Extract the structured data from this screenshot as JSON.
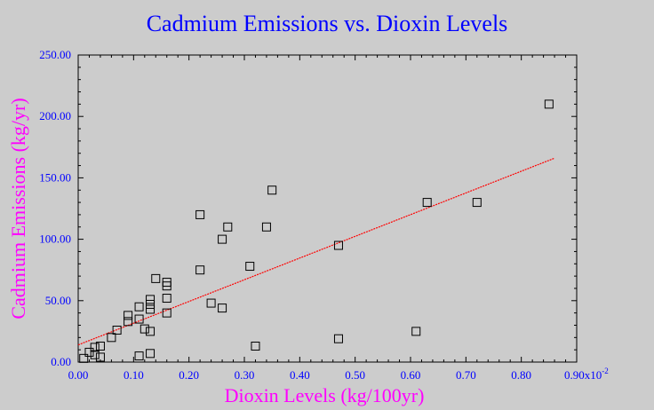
{
  "chart_data": {
    "type": "scatter",
    "title": "Cadmium Emissions vs. Dioxin Levels",
    "xlabel": "Dioxin Levels (kg/100yr)",
    "ylabel": "Cadmium Emissions (kg/yr)",
    "xlim": [
      0,
      0.9
    ],
    "ylim": [
      0,
      250
    ],
    "x_tick_labels": [
      "0.00",
      "0.10",
      "0.20",
      "0.30",
      "0.40",
      "0.50",
      "0.60",
      "0.70",
      "0.80",
      "0.90x10"
    ],
    "x_tick_exponent": "-2",
    "y_tick_labels": [
      "0.00",
      "50.00",
      "100.00",
      "150.00",
      "200.00",
      "250.00"
    ],
    "grid": false,
    "series": [
      {
        "marker": "open-square",
        "points": [
          [
            0.01,
            3
          ],
          [
            0.02,
            8
          ],
          [
            0.03,
            12
          ],
          [
            0.03,
            6
          ],
          [
            0.04,
            13
          ],
          [
            0.04,
            4
          ],
          [
            0.06,
            20
          ],
          [
            0.07,
            26
          ],
          [
            0.09,
            38
          ],
          [
            0.09,
            33
          ],
          [
            0.11,
            45
          ],
          [
            0.11,
            35
          ],
          [
            0.11,
            5
          ],
          [
            0.12,
            27
          ],
          [
            0.13,
            51
          ],
          [
            0.13,
            47
          ],
          [
            0.13,
            43
          ],
          [
            0.13,
            25
          ],
          [
            0.13,
            7
          ],
          [
            0.14,
            68
          ],
          [
            0.16,
            65
          ],
          [
            0.16,
            62
          ],
          [
            0.16,
            52
          ],
          [
            0.16,
            40
          ],
          [
            0.22,
            120
          ],
          [
            0.22,
            75
          ],
          [
            0.24,
            48
          ],
          [
            0.26,
            100
          ],
          [
            0.26,
            44
          ],
          [
            0.27,
            110
          ],
          [
            0.31,
            78
          ],
          [
            0.32,
            13
          ],
          [
            0.34,
            110
          ],
          [
            0.35,
            140
          ],
          [
            0.47,
            95
          ],
          [
            0.47,
            19
          ],
          [
            0.61,
            25
          ],
          [
            0.63,
            130
          ],
          [
            0.72,
            130
          ],
          [
            0.85,
            210
          ]
        ]
      }
    ],
    "fit_line": {
      "x": [
        0,
        0.86
      ],
      "y": [
        14,
        166
      ],
      "color": "#ff0000",
      "style": "dotted"
    },
    "colors": {
      "background": "#cccccc",
      "axes": "#000000",
      "title": "#0000ff",
      "axis_labels": "#ff00ff",
      "ticks": "#0000ff",
      "fit": "#ff0000"
    }
  }
}
